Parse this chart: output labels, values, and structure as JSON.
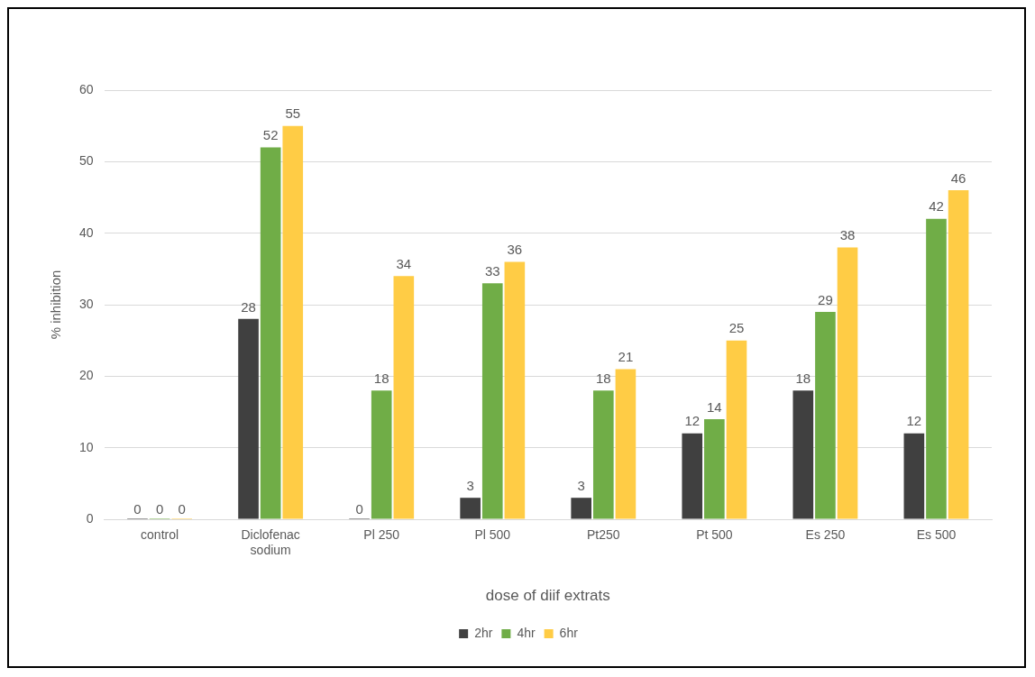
{
  "chart_data": {
    "type": "bar",
    "xlabel": "dose of diif extrats",
    "ylabel": "% inhibition",
    "categories": [
      "control",
      "Diclofenac sodium",
      "Pl 250",
      "Pl 500",
      "Pt250",
      "Pt 500",
      "Es 250",
      "Es 500"
    ],
    "series": [
      {
        "name": "2hr",
        "color": "#404040",
        "values": [
          0,
          28,
          0,
          3,
          3,
          12,
          18,
          12
        ]
      },
      {
        "name": "4hr",
        "color": "#70ad47",
        "values": [
          0,
          52,
          18,
          33,
          18,
          14,
          29,
          42
        ]
      },
      {
        "name": "6hr",
        "color": "#ffcc45",
        "values": [
          0,
          55,
          34,
          36,
          21,
          25,
          38,
          46
        ]
      }
    ],
    "ylim": [
      0,
      60
    ],
    "yticks": [
      0,
      10,
      20,
      30,
      40,
      50,
      60
    ],
    "grid": "y",
    "legend": "bottom",
    "data_labels": true
  }
}
